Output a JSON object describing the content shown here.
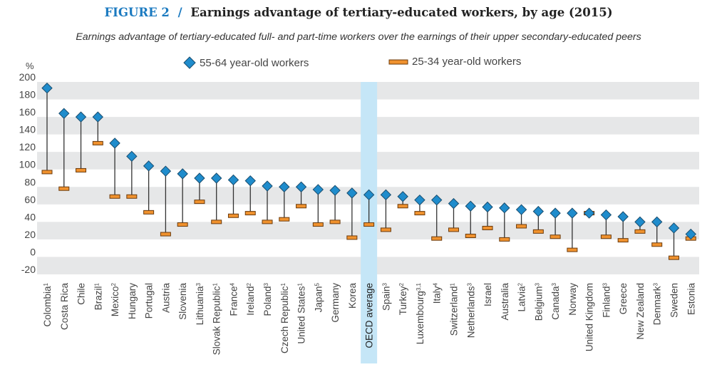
{
  "header": {
    "figure_label": "FIGURE 2",
    "separator": "/",
    "title": "Earnings advantage of tertiary-educated workers, by age (2015)",
    "subtitle": "Earnings advantage of tertiary-educated full- and part-time workers over the earnings of their upper secondary-educated peers"
  },
  "colors": {
    "older": "#1f8ccc",
    "younger": "#f0922e",
    "highlight": "#c5e6f7",
    "band": "#e6e7e8",
    "title_accent": "#1b7ac0"
  },
  "chart_data": {
    "type": "dot-range",
    "ylabel": "%",
    "ylim": [
      -20,
      200
    ],
    "yticks": [
      200,
      180,
      160,
      140,
      120,
      100,
      80,
      60,
      40,
      20,
      0,
      -20
    ],
    "grid": "alternating bands",
    "legend_position": "top",
    "series": [
      {
        "name": "55-64 year-old workers",
        "marker": "diamond",
        "key": "older"
      },
      {
        "name": "25-34 year-old workers",
        "marker": "bar",
        "key": "younger"
      }
    ],
    "highlight": "OECD average",
    "categories": [
      {
        "name": "Colombia",
        "note": "1",
        "older": 193,
        "younger": 97
      },
      {
        "name": "Costa Rica",
        "note": "",
        "older": 164,
        "younger": 78
      },
      {
        "name": "Chile",
        "note": "",
        "older": 160,
        "younger": 99
      },
      {
        "name": "Brazil",
        "note": "1",
        "older": 160,
        "younger": 130
      },
      {
        "name": "Mexico",
        "note": "2",
        "older": 130,
        "younger": 69
      },
      {
        "name": "Hungary",
        "note": "",
        "older": 115,
        "younger": 69
      },
      {
        "name": "Portugal",
        "note": "",
        "older": 104,
        "younger": 51
      },
      {
        "name": "Austria",
        "note": "",
        "older": 98,
        "younger": 26
      },
      {
        "name": "Slovenia",
        "note": "",
        "older": 95,
        "younger": 37
      },
      {
        "name": "Lithuania",
        "note": "3",
        "older": 90,
        "younger": 63
      },
      {
        "name": "Slovak Republic",
        "note": "1",
        "older": 90,
        "younger": 40
      },
      {
        "name": "France",
        "note": "4",
        "older": 88,
        "younger": 47
      },
      {
        "name": "Ireland",
        "note": "2",
        "older": 87,
        "younger": 50
      },
      {
        "name": "Poland",
        "note": "3",
        "older": 81,
        "younger": 40
      },
      {
        "name": "Czech Republic",
        "note": "1",
        "older": 80,
        "younger": 43
      },
      {
        "name": "United States",
        "note": "1",
        "older": 80,
        "younger": 58
      },
      {
        "name": "Japan",
        "note": "5",
        "older": 77,
        "younger": 37
      },
      {
        "name": "Germany",
        "note": "",
        "older": 76,
        "younger": 40
      },
      {
        "name": "Korea",
        "note": "",
        "older": 73,
        "younger": 22
      },
      {
        "name": "OECD average",
        "note": "",
        "older": 71,
        "younger": 37
      },
      {
        "name": "Spain",
        "note": "3",
        "older": 71,
        "younger": 31
      },
      {
        "name": "Turkey",
        "note": "2",
        "older": 69,
        "younger": 58
      },
      {
        "name": "Luxembourg",
        "note": "3,1",
        "older": 65,
        "younger": 50
      },
      {
        "name": "Italy",
        "note": "4",
        "older": 65,
        "younger": 21
      },
      {
        "name": "Switzerland",
        "note": "1",
        "older": 61,
        "younger": 31
      },
      {
        "name": "Netherlands",
        "note": "3",
        "older": 58,
        "younger": 24
      },
      {
        "name": "Israel",
        "note": "",
        "older": 57,
        "younger": 33
      },
      {
        "name": "Australia",
        "note": "",
        "older": 56,
        "younger": 20
      },
      {
        "name": "Latvia",
        "note": "2",
        "older": 54,
        "younger": 35
      },
      {
        "name": "Belgium",
        "note": "3",
        "older": 52,
        "younger": 29
      },
      {
        "name": "Canada",
        "note": "3",
        "older": 50,
        "younger": 23
      },
      {
        "name": "Norway",
        "note": "",
        "older": 50,
        "younger": 8
      },
      {
        "name": "United Kingdom",
        "note": "",
        "older": 50,
        "younger": 50
      },
      {
        "name": "Finland",
        "note": "3",
        "older": 48,
        "younger": 23
      },
      {
        "name": "Greece",
        "note": "",
        "older": 46,
        "younger": 19
      },
      {
        "name": "New Zealand",
        "note": "",
        "older": 40,
        "younger": 29
      },
      {
        "name": "Denmark",
        "note": "3",
        "older": 40,
        "younger": 14
      },
      {
        "name": "Sweden",
        "note": "",
        "older": 33,
        "younger": -1
      },
      {
        "name": "Estonia",
        "note": "",
        "older": 26,
        "younger": 21
      }
    ]
  }
}
